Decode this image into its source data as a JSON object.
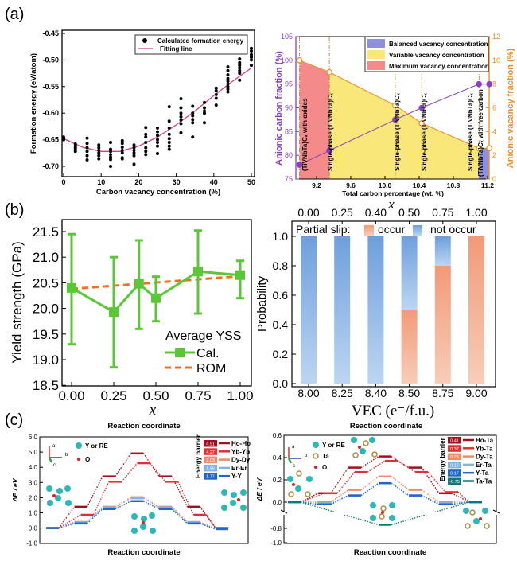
{
  "panel_labels": [
    "(a)",
    "(b)",
    "(c)"
  ],
  "chart_data": [
    {
      "type": "scatter",
      "xlabel": "Carbon vacancy concentration (%)",
      "ylabel": "Formation energy (eV/atom)",
      "xlim": [
        -0.5,
        51
      ],
      "ylim": [
        -0.72,
        -0.445
      ],
      "xticks": [
        "0",
        "10",
        "20",
        "30",
        "40",
        "50"
      ],
      "yticks": [
        "-0.45",
        "-0.50",
        "-0.55",
        "-0.60",
        "-0.65",
        "-0.70"
      ],
      "legend": [
        "Calculated formation energy",
        "Fitting line"
      ],
      "legend_position": "top-right",
      "colors": {
        "points": "#000000",
        "fit": "#d0408a"
      },
      "points": [
        {
          "x": 0,
          "y": [
            -0.645,
            -0.648,
            -0.65
          ]
        },
        {
          "x": 3.125,
          "y": [
            -0.658,
            -0.662,
            -0.665,
            -0.668,
            -0.672
          ]
        },
        {
          "x": 6.25,
          "y": [
            -0.647,
            -0.657,
            -0.665,
            -0.672,
            -0.68,
            -0.688
          ]
        },
        {
          "x": 9.375,
          "y": [
            -0.66,
            -0.665,
            -0.67,
            -0.675,
            -0.68,
            -0.686
          ]
        },
        {
          "x": 12.5,
          "y": [
            -0.655,
            -0.668,
            -0.672,
            -0.678,
            -0.683,
            -0.687,
            -0.7
          ]
        },
        {
          "x": 15.625,
          "y": [
            -0.652,
            -0.657,
            -0.664,
            -0.67,
            -0.675,
            -0.684,
            -0.686
          ]
        },
        {
          "x": 18.75,
          "y": [
            -0.66,
            -0.665,
            -0.67,
            -0.675,
            -0.68,
            -0.696
          ]
        },
        {
          "x": 21.875,
          "y": [
            -0.627,
            -0.64,
            -0.645,
            -0.655,
            -0.665,
            -0.672,
            -0.678
          ]
        },
        {
          "x": 25,
          "y": [
            -0.628,
            -0.635,
            -0.642,
            -0.65,
            -0.655,
            -0.662,
            -0.676
          ]
        },
        {
          "x": 28.125,
          "y": [
            -0.588,
            -0.615,
            -0.628,
            -0.64,
            -0.648,
            -0.655,
            -0.662,
            -0.668
          ]
        },
        {
          "x": 31.25,
          "y": [
            -0.573,
            -0.59,
            -0.6,
            -0.607,
            -0.613,
            -0.62,
            -0.637
          ]
        },
        {
          "x": 34.375,
          "y": [
            -0.587,
            -0.6,
            -0.605,
            -0.612,
            -0.618,
            -0.645
          ]
        },
        {
          "x": 37.5,
          "y": [
            -0.58,
            -0.59,
            -0.596,
            -0.6,
            -0.618
          ]
        },
        {
          "x": 40.625,
          "y": [
            -0.553,
            -0.558,
            -0.565,
            -0.572,
            -0.585
          ]
        },
        {
          "x": 43.75,
          "y": [
            -0.513,
            -0.52,
            -0.528,
            -0.535,
            -0.54,
            -0.545,
            -0.55,
            -0.555,
            -0.56
          ]
        },
        {
          "x": 46.875,
          "y": [
            -0.498,
            -0.505,
            -0.51,
            -0.515,
            -0.52,
            -0.525,
            -0.538
          ]
        },
        {
          "x": 50,
          "y": [
            -0.478,
            -0.483,
            -0.49,
            -0.495,
            -0.5,
            -0.51
          ]
        }
      ],
      "fit": [
        [
          0,
          -0.648
        ],
        [
          5,
          -0.664
        ],
        [
          10,
          -0.672
        ],
        [
          15,
          -0.672
        ],
        [
          20,
          -0.662
        ],
        [
          25,
          -0.645
        ],
        [
          30,
          -0.622
        ],
        [
          35,
          -0.596
        ],
        [
          40,
          -0.567
        ],
        [
          45,
          -0.54
        ],
        [
          50,
          -0.515
        ]
      ]
    },
    {
      "type": "line",
      "xlabel": "Total carbon percentage (wt. %)",
      "ylabel": "Anionic carbon fraction (%)",
      "ylabel_right": "Anionic vacancy fraction (%)",
      "xlim": [
        8.96,
        11.25
      ],
      "ylim": [
        75,
        105
      ],
      "ylim_right": [
        0,
        12
      ],
      "xticks": [
        "9.2",
        "9.6",
        "10.0",
        "10.4",
        "10.8",
        "11.2"
      ],
      "yticks": [
        "75",
        "80",
        "85",
        "90",
        "95",
        "100",
        "105"
      ],
      "yticks_right": [
        "0",
        "2",
        "4",
        "6",
        "8",
        "10",
        "12"
      ],
      "x": [
        9.0,
        9.35,
        10.12,
        10.43,
        11.1,
        11.22
      ],
      "series": [
        {
          "axis": "left",
          "values": [
            78,
            81,
            87.5,
            90,
            95,
            95
          ],
          "color": "#8a3fc0"
        },
        {
          "axis": "right",
          "values": [
            10,
            9,
            6.2,
            4.7,
            2.6,
            2.6
          ],
          "color": "#f08a20"
        }
      ],
      "regions": [
        {
          "name": "Maximum vacancy concentration",
          "from": 9.0,
          "to": 9.35,
          "color": "#f48a8a"
        },
        {
          "name": "Variable vacancy concentration",
          "from": 9.35,
          "to": 11.1,
          "color": "#fae77a"
        },
        {
          "name": "Balanced vacancy concentration",
          "from": 11.1,
          "to": 11.22,
          "color": "#8e90d8"
        }
      ],
      "legend": [
        "Balanced vacancy concentration",
        "Variable vacancy concentration",
        "Maximum vacancy concentration"
      ],
      "legend_position": "top-right",
      "annotations": [
        "(TiVNbTa)Cₓ with oxides",
        "Single-phase (TiVNbTa)Cₓ",
        "Single-phase (TiVNbTa)Cₓ",
        "Single-phase (TiVNbTa)Cₓ",
        "Single-phase (TiVNbTa)Cₓ",
        "(TiVNbTa)Cₓ with free carbon"
      ]
    },
    {
      "type": "line",
      "xlabel": "x",
      "ylabel": "Yield strength (GPa)",
      "xlim": [
        -0.06,
        1.06
      ],
      "ylim": [
        18.5,
        21.7
      ],
      "xticks": [
        "0.00",
        "0.25",
        "0.50",
        "0.75",
        "1.00"
      ],
      "yticks": [
        "18.5",
        "19.0",
        "19.5",
        "20.0",
        "20.5",
        "21.0",
        "21.5"
      ],
      "legend_title": "Average YSS",
      "legend_position": "bottom-right",
      "x": [
        0,
        0.25,
        0.4,
        0.5,
        0.75,
        1.0
      ],
      "series": [
        {
          "name": "Cal.",
          "values": [
            20.4,
            19.93,
            20.48,
            20.2,
            20.72,
            20.65
          ],
          "err_low": [
            19.3,
            18.85,
            19.6,
            19.75,
            19.9,
            20.2
          ],
          "err_high": [
            21.45,
            21.0,
            21.33,
            20.62,
            21.52,
            20.93
          ],
          "color": "#5ac836"
        },
        {
          "name": "ROM",
          "x": [
            0,
            1
          ],
          "values": [
            20.38,
            20.63
          ],
          "color": "#f07020"
        }
      ]
    },
    {
      "type": "bar",
      "stacked": true,
      "xlabel": "VEC (e⁻/f.u.)",
      "xlabel_top": "x",
      "ylabel": "Probability",
      "ylim": [
        0,
        1.1
      ],
      "categories": [
        "8.00",
        "8.25",
        "8.40",
        "8.50",
        "8.75",
        "9.00"
      ],
      "categories_top": [
        "0.00",
        "0.25",
        "0.40",
        "0.50",
        "0.75",
        "1.00"
      ],
      "yticks": [
        "0.0",
        "0.2",
        "0.4",
        "0.6",
        "0.8",
        "1.0"
      ],
      "legend_title": "Partial slip:",
      "legend_position": "top",
      "series": [
        {
          "name": "occur",
          "values": [
            0,
            0,
            0,
            0.5,
            0.8,
            1.0
          ],
          "color": "#f4a080"
        },
        {
          "name": "not occur",
          "values": [
            1.0,
            1.0,
            1.0,
            0.5,
            0.2,
            0
          ],
          "color": "#7aaae0"
        }
      ]
    },
    {
      "type": "line",
      "title": "Reaction coordinate",
      "xlabel": "Reaction coordinate",
      "ylabel": "ΔE / eV",
      "ylim": [
        -1.0,
        6.0
      ],
      "yticks": [
        "-1.0",
        "0.0",
        "1.0",
        "2.0",
        "3.0",
        "4.0",
        "5.0",
        "6.0"
      ],
      "legend_title": "Energy barrier",
      "legend_position": "right",
      "atom_legend": [
        "Y or RE",
        "O"
      ],
      "axes_labels": [
        "a",
        "b",
        "c"
      ],
      "series": [
        {
          "name": "Ho-Ho",
          "barrier": "4.91",
          "values": [
            0,
            1.4,
            3.4,
            4.91,
            3.4,
            1.4,
            0
          ],
          "color": "#a0101e"
        },
        {
          "name": "Yb-Yb",
          "barrier": "4.27",
          "values": [
            0,
            0.87,
            3.05,
            4.27,
            3.05,
            0.87,
            0
          ],
          "color": "#e23030"
        },
        {
          "name": "Dy-Dy",
          "barrier": "2.03",
          "values": [
            0,
            0.4,
            1.4,
            2.03,
            1.4,
            0.4,
            -0.05
          ],
          "color": "#f08a68"
        },
        {
          "name": "Er-Er",
          "barrier": "1.96",
          "values": [
            0,
            0.38,
            1.35,
            1.96,
            1.35,
            0.38,
            -0.05
          ],
          "color": "#80b4e4"
        },
        {
          "name": "Y-Y",
          "barrier": "1.77",
          "values": [
            0,
            0.3,
            1.25,
            1.77,
            1.25,
            0.3,
            -0.07
          ],
          "color": "#2464c4"
        }
      ]
    },
    {
      "type": "line",
      "title": "Reaction coordinate",
      "xlabel": "Reaction coordinate",
      "ylabel": "ΔE / eV",
      "ylim": [
        -1.0,
        0.6
      ],
      "y_axis_break": [
        -0.75,
        -0.1
      ],
      "yticks": [
        "-1.0",
        "-0.8",
        "0.0",
        "0.2",
        "0.4",
        "0.6"
      ],
      "legend_title": "Energy barrier",
      "legend_position": "right",
      "atom_legend": [
        "Y or RE",
        "Ta",
        "O"
      ],
      "axes_labels": [
        "a",
        "b",
        "c"
      ],
      "series": [
        {
          "name": "Ho-Ta",
          "barrier": "0.41",
          "values": [
            0,
            0.08,
            0.31,
            0.41,
            0.31,
            0.08,
            0
          ],
          "color": "#a0101e"
        },
        {
          "name": "Yb-Ta",
          "barrier": "0.37",
          "values": [
            0,
            0.08,
            0.27,
            0.37,
            0.27,
            0.09,
            0
          ],
          "color": "#e23030"
        },
        {
          "name": "Dy-Ta",
          "barrier": "0.23",
          "values": [
            0,
            0,
            0.11,
            0.23,
            0.11,
            0,
            0
          ],
          "color": "#f08a68"
        },
        {
          "name": "Er-Ta",
          "barrier": "0.17",
          "values": [
            0,
            -0.01,
            0.06,
            0.17,
            0.06,
            -0.01,
            0
          ],
          "color": "#80b4e4"
        },
        {
          "name": "Y-Ta",
          "barrier": "0.17",
          "values": [
            0,
            -0.02,
            0.06,
            0.17,
            0.06,
            -0.02,
            0
          ],
          "color": "#2464c4"
        },
        {
          "name": "Ta-Ta",
          "barrier": "-0.75",
          "values": [
            0,
            -0.75,
            0
          ],
          "color": "#0e7a78"
        }
      ]
    }
  ]
}
